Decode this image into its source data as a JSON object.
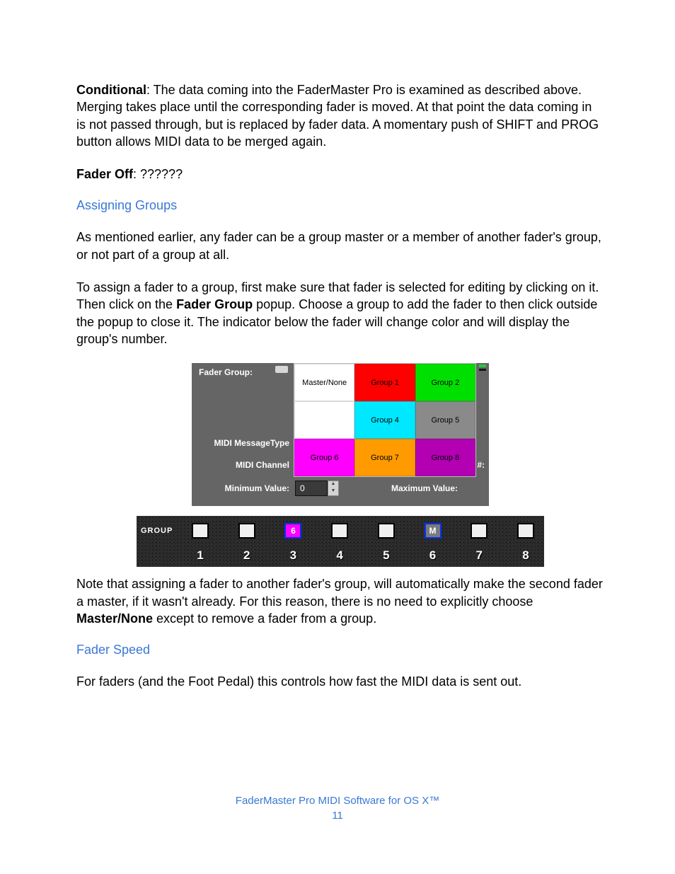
{
  "body": {
    "p1_strong": "Conditional",
    "p1_rest": ": The data coming into the FaderMaster Pro is examined as described above. Merging takes place until the corresponding fader is moved. At that point the data coming in is not passed through, but is replaced by fader data. A momentary push of SHIFT and PROG button allows MIDI data to be merged again.",
    "p2_strong": "Fader Off",
    "p2_rest": ": ??????",
    "h1": "Assigning Groups",
    "p3": "As mentioned earlier, any fader can be a group master or a member of another fader's group, or not part of a group at all.",
    "p4a": "To assign a fader to a group, first make sure that fader is selected for editing by clicking on it. Then click on the ",
    "p4b_strong": "Fader Group",
    "p4c": " popup. Choose a group to add the fader to then click outside the popup to close it. The indicator below the fader will change color and will display the group's number.",
    "p5a": "Note that assigning a fader to another fader's group, will automatically make the second fader a master, if it wasn't already. For this reason, there is no need to explicitly choose ",
    "p5b_strong": "Master/None",
    "p5c": " except to remove a fader from a group.",
    "h2": "Fader Speed",
    "p6": "For faders (and the Foot Pedal) this controls how fast the MIDI data is sent out."
  },
  "panel": {
    "labels": {
      "fader_group": "Fader Group:",
      "midi_msg_type": "MIDI MessageType",
      "midi_channel": "MIDI Channel",
      "min_value": "Minimum Value:",
      "max_value": "Maximum Value:",
      "r_num": "r #:"
    },
    "min_value_number": "0",
    "popup_cells": [
      {
        "label": "Master/None",
        "bg": "#ffffff",
        "fg": "#000000"
      },
      {
        "label": "Group 1",
        "bg": "#ff0000",
        "fg": "#000000"
      },
      {
        "label": "Group 2",
        "bg": "#00e000",
        "fg": "#000000"
      },
      {
        "label": "",
        "bg": "#ffffff",
        "fg": "#000000"
      },
      {
        "label": "Group 4",
        "bg": "#00e8ff",
        "fg": "#000000"
      },
      {
        "label": "Group 5",
        "bg": "#8a8a8a",
        "fg": "#000000"
      },
      {
        "label": "Group 6",
        "bg": "#ff00ff",
        "fg": "#000000"
      },
      {
        "label": "Group 7",
        "bg": "#ff9a00",
        "fg": "#000000"
      },
      {
        "label": "Group 8",
        "bg": "#b200b2",
        "fg": "#000000"
      }
    ],
    "bg": "#656565"
  },
  "strip": {
    "label": "GROUP",
    "chips": [
      {
        "text": "",
        "bg": "#f0f0f0",
        "fg": "#ffffff",
        "border": "#000000"
      },
      {
        "text": "",
        "bg": "#f0f0f0",
        "fg": "#ffffff",
        "border": "#000000"
      },
      {
        "text": "6",
        "bg": "#ff00ff",
        "fg": "#ffffff",
        "border": "#0030ff"
      },
      {
        "text": "",
        "bg": "#f0f0f0",
        "fg": "#ffffff",
        "border": "#000000"
      },
      {
        "text": "",
        "bg": "#f0f0f0",
        "fg": "#ffffff",
        "border": "#000000"
      },
      {
        "text": "M",
        "bg": "#7a7a7a",
        "fg": "#ffffff",
        "border": "#0030ff"
      },
      {
        "text": "",
        "bg": "#f0f0f0",
        "fg": "#ffffff",
        "border": "#000000"
      },
      {
        "text": "",
        "bg": "#f0f0f0",
        "fg": "#ffffff",
        "border": "#000000"
      }
    ],
    "numbers": [
      "1",
      "2",
      "3",
      "4",
      "5",
      "6",
      "7",
      "8"
    ]
  },
  "footer": {
    "title": "FaderMaster Pro MIDI Software for OS X™",
    "page": "11"
  }
}
